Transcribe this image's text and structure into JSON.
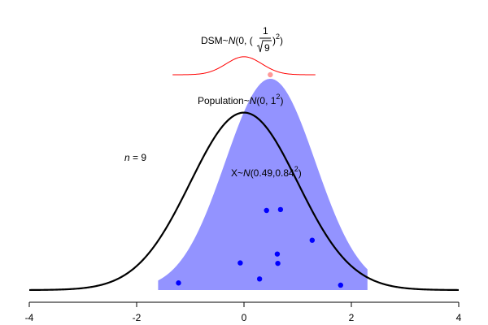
{
  "chart_data": {
    "type": "area",
    "xlim": [
      -4,
      4
    ],
    "x_ticks": [
      -4,
      -2,
      0,
      2,
      4
    ],
    "x_tick_labels": [
      "-4",
      "-2",
      "0",
      "2",
      "4"
    ],
    "grid": false,
    "annotations": {
      "n_label": "n",
      "n_eq": " = 9",
      "population_prefix": "Population~",
      "population_dist": "N",
      "population_args": "(0, 1",
      "population_sup": "2",
      "population_close": ")",
      "sample_prefix": "X~",
      "sample_dist": "N",
      "sample_args": "(0.49,0.84",
      "sample_sup": "2",
      "sample_close": ")",
      "dsm_prefix": "DSM~",
      "dsm_dist": "N",
      "dsm_args": "(0, (",
      "dsm_frac_num": "1",
      "dsm_frac_den": "9",
      "dsm_close": ")",
      "dsm_sup": "2",
      "dsm_end": ")"
    },
    "series": [
      {
        "kind": "population_density",
        "mean": 0,
        "sd": 1,
        "color": "#000000"
      },
      {
        "kind": "sample_density_fill",
        "mean": 0.49,
        "sd": 0.84,
        "color": "#8080ff"
      },
      {
        "kind": "sampling_distribution_of_mean",
        "mean": 0,
        "sd": 0.333,
        "color": "#ff0000"
      }
    ],
    "sample_points": [
      {
        "x": -1.22,
        "y": 0.016
      },
      {
        "x": -0.07,
        "y": 0.061
      },
      {
        "x": 0.29,
        "y": 0.025
      },
      {
        "x": 0.42,
        "y": 0.179
      },
      {
        "x": 0.62,
        "y": 0.081
      },
      {
        "x": 0.63,
        "y": 0.06
      },
      {
        "x": 0.68,
        "y": 0.181
      },
      {
        "x": 1.27,
        "y": 0.112
      },
      {
        "x": 1.8,
        "y": 0.011
      }
    ],
    "sample_mean_marker": {
      "x": 0.49,
      "color": "#ff9999"
    },
    "point_color": "#0000ff"
  }
}
